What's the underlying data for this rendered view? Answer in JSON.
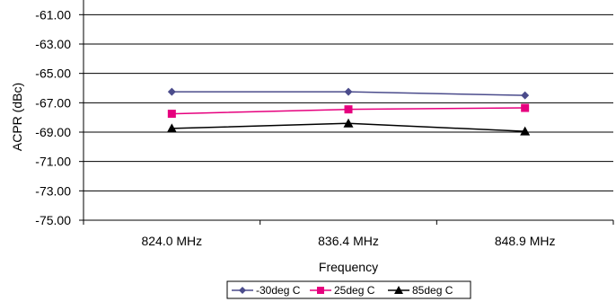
{
  "chart_data": {
    "type": "line",
    "title": "",
    "xlabel": "Frequency",
    "ylabel": "ACPR (dBc)",
    "categories": [
      "824.0 MHz",
      "836.4 MHz",
      "848.9 MHz"
    ],
    "ylim": [
      -75.0,
      -60.0
    ],
    "yticks": [
      "-61.00",
      "-63.00",
      "-65.00",
      "-67.00",
      "-69.00",
      "-71.00",
      "-73.00",
      "-75.00"
    ],
    "ytick_values": [
      -61,
      -63,
      -65,
      -67,
      -69,
      -71,
      -73,
      -75
    ],
    "grid": true,
    "legend_position": "bottom",
    "series": [
      {
        "name": "-30deg C",
        "values": [
          -66.25,
          -66.25,
          -66.5
        ],
        "color": "#4B4C8C",
        "marker": "diamond"
      },
      {
        "name": "25deg C",
        "values": [
          -67.75,
          -67.45,
          -67.35
        ],
        "color": "#E6007E",
        "marker": "square"
      },
      {
        "name": "85deg C",
        "values": [
          -68.75,
          -68.4,
          -68.95
        ],
        "color": "#000000",
        "marker": "triangle"
      }
    ]
  }
}
